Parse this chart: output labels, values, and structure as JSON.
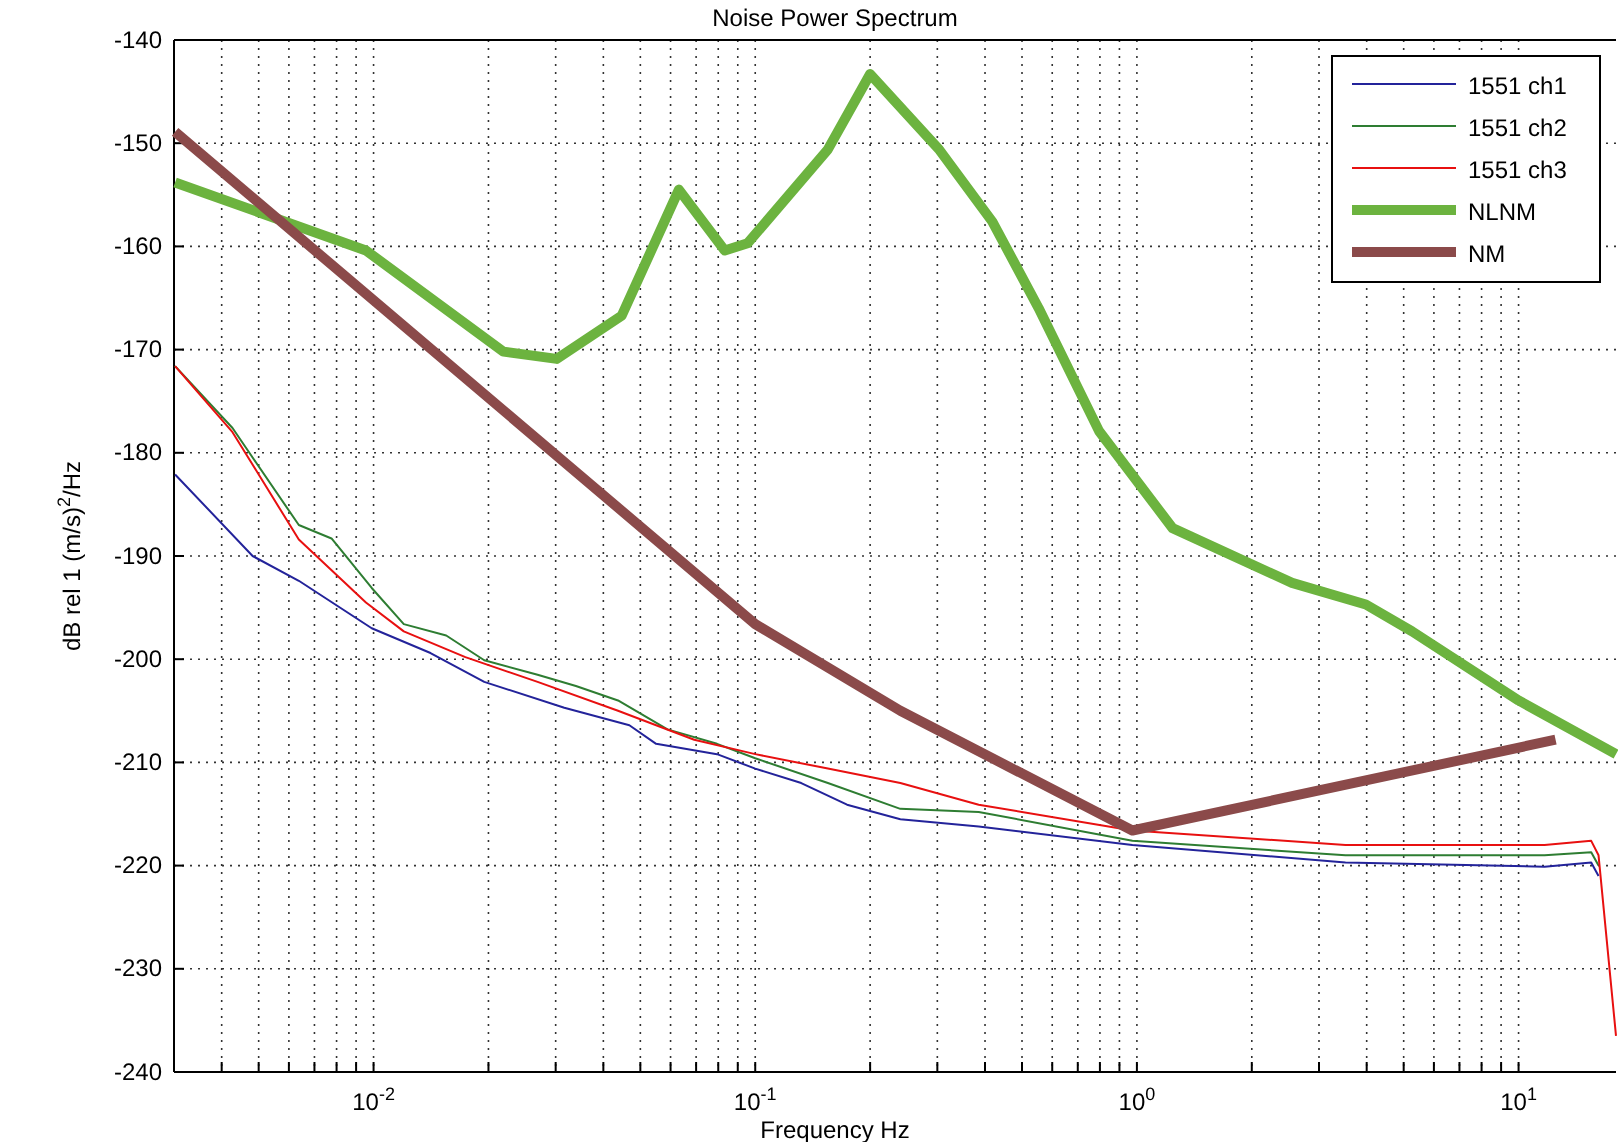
{
  "chart_data": {
    "type": "line",
    "title": "Noise Power Spectrum",
    "xlabel": "Frequency Hz",
    "ylabel": "dB rel 1 (m/s)$^{2}$/Hz",
    "log": "x",
    "grid": true,
    "legend": "top right",
    "line_style": "solid",
    "marker": "none",
    "xlim": [
      0.003,
      18
    ],
    "ylim": [
      -240,
      -140
    ],
    "xticks": [
      {
        "value": 0.004,
        "label": null
      },
      {
        "value": 0.005,
        "label": null
      },
      {
        "value": 0.006,
        "label": null
      },
      {
        "value": 0.007,
        "label": null
      },
      {
        "value": 0.008,
        "label": null
      },
      {
        "value": 0.009,
        "label": null
      },
      {
        "value": 0.01,
        "label": "10$^{-2}$"
      },
      {
        "value": 0.02,
        "label": null
      },
      {
        "value": 0.03,
        "label": null
      },
      {
        "value": 0.04,
        "label": null
      },
      {
        "value": 0.05,
        "label": null
      },
      {
        "value": 0.06,
        "label": null
      },
      {
        "value": 0.07,
        "label": null
      },
      {
        "value": 0.08,
        "label": null
      },
      {
        "value": 0.09,
        "label": null
      },
      {
        "value": 0.1,
        "label": "10$^{-1}$"
      },
      {
        "value": 0.2,
        "label": null
      },
      {
        "value": 0.3,
        "label": null
      },
      {
        "value": 0.4,
        "label": null
      },
      {
        "value": 0.5,
        "label": null
      },
      {
        "value": 0.6,
        "label": null
      },
      {
        "value": 0.7,
        "label": null
      },
      {
        "value": 0.8,
        "label": null
      },
      {
        "value": 0.9,
        "label": null
      },
      {
        "value": 1,
        "label": "10$^{0}$"
      },
      {
        "value": 2,
        "label": null
      },
      {
        "value": 3,
        "label": null
      },
      {
        "value": 4,
        "label": null
      },
      {
        "value": 5,
        "label": null
      },
      {
        "value": 6,
        "label": null
      },
      {
        "value": 7,
        "label": null
      },
      {
        "value": 8,
        "label": null
      },
      {
        "value": 9,
        "label": null
      },
      {
        "value": 10,
        "label": "10$^{1}$"
      }
    ],
    "yticks": [
      -240,
      -230,
      -220,
      -210,
      -200,
      -190,
      -180,
      -170,
      -160,
      -150,
      -140
    ],
    "series": [
      {
        "name": "1551 ch1",
        "color": "#23239a",
        "x": [
          0.00302,
          0.00482,
          0.00637,
          0.00989,
          0.0141,
          0.0195,
          0.0316,
          0.0468,
          0.055,
          0.0794,
          0.1,
          0.132,
          0.174,
          0.24,
          0.385,
          0.973,
          3.52,
          11.7,
          15.5,
          16.2
        ],
        "values": [
          -182.1,
          -190,
          -192.4,
          -197,
          -199.4,
          -202.2,
          -204.7,
          -206.4,
          -208.2,
          -209.2,
          -210.6,
          -212,
          -214.1,
          -215.5,
          -216.2,
          -218,
          -219.7,
          -220.1,
          -219.7,
          -221
        ]
      },
      {
        "name": "1551 ch2",
        "color": "#2e7d32",
        "x": [
          0.00302,
          0.00427,
          0.00637,
          0.00776,
          0.00989,
          0.012,
          0.0155,
          0.0195,
          0.0269,
          0.0339,
          0.0437,
          0.0589,
          0.0794,
          0.1,
          0.155,
          0.24,
          0.385,
          0.973,
          3.52,
          11.7,
          15.5,
          16.2
        ],
        "values": [
          -171.6,
          -177.6,
          -187,
          -188.3,
          -193.1,
          -196.6,
          -197.7,
          -200.1,
          -201.5,
          -202.6,
          -204,
          -206.8,
          -208.2,
          -209.6,
          -212,
          -214.5,
          -214.8,
          -217.6,
          -219,
          -219,
          -218.7,
          -220
        ]
      },
      {
        "name": "1551 ch3",
        "color": "#e81010",
        "x": [
          0.00302,
          0.00427,
          0.00637,
          0.00955,
          0.012,
          0.0174,
          0.0269,
          0.0437,
          0.0692,
          0.1,
          0.155,
          0.24,
          0.385,
          0.973,
          3.52,
          11.7,
          15.5,
          16.2,
          18
        ],
        "values": [
          -171.6,
          -178,
          -188.4,
          -194.5,
          -197.3,
          -199.8,
          -202.2,
          -205,
          -207.8,
          -209.2,
          -210.6,
          -212,
          -214.1,
          -216.6,
          -218,
          -218,
          -217.6,
          -219,
          -236.5
        ]
      },
      {
        "name": "NLNM",
        "color": "#6cb33f",
        "x": [
          0.00302,
          0.00955,
          0.0219,
          0.0302,
          0.0447,
          0.0631,
          0.0832,
          0.0955,
          0.155,
          0.2,
          0.303,
          0.418,
          0.553,
          0.796,
          1.24,
          2.55,
          3.98,
          5.26,
          10,
          18
        ],
        "values": [
          -153.8,
          -160.4,
          -170.2,
          -170.9,
          -166.7,
          -154.5,
          -160.4,
          -159.7,
          -150.6,
          -143.3,
          -150.6,
          -157.6,
          -166,
          -177.9,
          -187.3,
          -192.6,
          -194.7,
          -197.3,
          -204,
          -209.2
        ]
      },
      {
        "name": "NM",
        "color": "#8b4a4a",
        "x": [
          0.00302,
          0.1,
          0.24,
          0.973,
          12.5
        ],
        "values": [
          -148.9,
          -196.6,
          -205,
          -216.6,
          -207.8
        ]
      }
    ]
  }
}
